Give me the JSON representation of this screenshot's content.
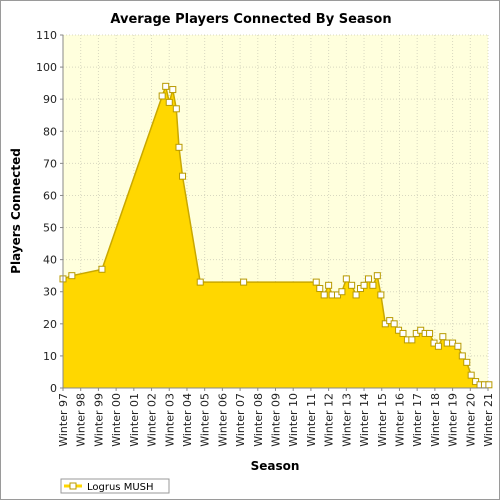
{
  "chart_data": {
    "type": "area",
    "title": "Average Players Connected By Season",
    "xlabel": "Season",
    "ylabel": "Players Connected",
    "ylim": [
      0,
      110
    ],
    "yticks": [
      0,
      10,
      20,
      30,
      40,
      50,
      60,
      70,
      80,
      90,
      100,
      110
    ],
    "xticks": [
      "Winter 97",
      "Winter 98",
      "Winter 99",
      "Winter 00",
      "Winter 01",
      "Winter 02",
      "Winter 03",
      "Winter 04",
      "Winter 05",
      "Winter 06",
      "Winter 07",
      "Winter 08",
      "Winter 09",
      "Winter 10",
      "Winter 11",
      "Winter 12",
      "Winter 13",
      "Winter 14",
      "Winter 15",
      "Winter 16",
      "Winter 17",
      "Winter 18",
      "Winter 19",
      "Winter 20",
      "Winter 21"
    ],
    "xlim": [
      1997,
      2021
    ],
    "grid": true,
    "legend_position": "bottom-left",
    "colors": {
      "fill": "#ffd700",
      "fill_dark": "#c9a800",
      "marker_edge": "#b89a00",
      "plot_bg": "#ffffdd"
    },
    "series": [
      {
        "name": "Logrus MUSH",
        "x": [
          1997.0,
          1997.5,
          1999.2,
          2002.6,
          2002.8,
          2003.0,
          2003.2,
          2003.4,
          2003.55,
          2003.75,
          2004.75,
          2007.2,
          2011.3,
          2011.5,
          2011.75,
          2012.0,
          2012.2,
          2012.5,
          2012.75,
          2013.0,
          2013.3,
          2013.55,
          2013.8,
          2014.0,
          2014.25,
          2014.5,
          2014.75,
          2014.95,
          2015.2,
          2015.45,
          2015.7,
          2015.95,
          2016.2,
          2016.45,
          2016.7,
          2016.95,
          2017.2,
          2017.45,
          2017.7,
          2017.95,
          2018.2,
          2018.45,
          2018.7,
          2019.0,
          2019.3,
          2019.55,
          2019.8,
          2020.05,
          2020.3,
          2020.55,
          2020.8,
          2021.05
        ],
        "values": [
          34,
          35,
          37,
          91,
          94,
          89,
          93,
          87,
          75,
          66,
          33,
          33,
          33,
          31,
          29,
          32,
          29,
          29,
          30,
          34,
          32,
          29,
          31,
          32,
          34,
          32,
          35,
          29,
          20,
          21,
          20,
          18,
          17,
          15,
          15,
          17,
          18,
          17,
          17,
          14,
          13,
          16,
          14,
          14,
          13,
          10,
          8,
          4,
          2,
          1,
          1,
          1
        ]
      }
    ]
  }
}
